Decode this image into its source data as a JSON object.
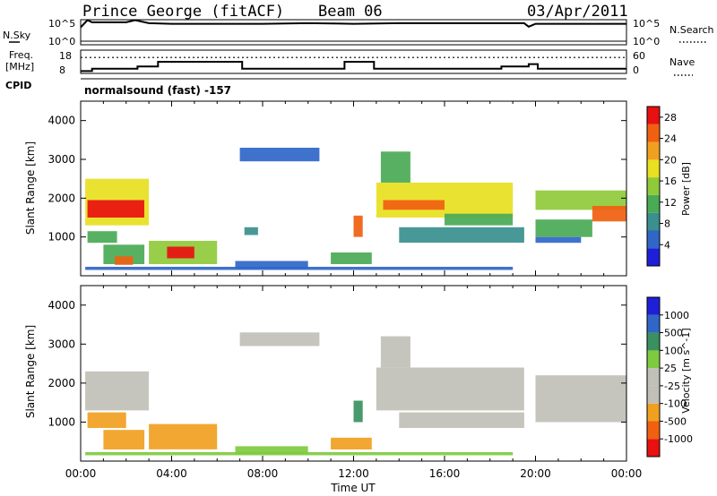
{
  "header": {
    "station": "Prince George (fitACF)",
    "beam": "Beam 06",
    "date": "03/Apr/2011"
  },
  "aux": {
    "nsky_label": "N.Sky",
    "nsearch_label": "N.Search",
    "freq_label_1": "Freq.",
    "freq_label_2": "[MHz]",
    "nave_label": "Nave",
    "cpid_label": "CPID",
    "cpid_text": "normalsound (fast) -157",
    "noise_ticks": [
      "10^5",
      "10^0"
    ],
    "freq_ticks": [
      "18",
      "8"
    ],
    "nave_ticks": [
      "60",
      "0"
    ]
  },
  "colors": {
    "power": [
      "#1f1fd8",
      "#2f66c8",
      "#3a8f8f",
      "#4aaa55",
      "#8fca3a",
      "#e8e020",
      "#f0a020",
      "#f06010",
      "#e81010"
    ],
    "velocity": [
      "#e81010",
      "#f06010",
      "#f0a020",
      "#c0c0b8",
      "#c0c0b8",
      "#7ecb40",
      "#3a9060",
      "#2f66c8",
      "#1f1fd8"
    ]
  },
  "chart_data": [
    {
      "type": "line",
      "panel": "noise",
      "ylabel": "N.Sky",
      "ylabel_right": "N.Search",
      "y_scale": "log",
      "ylim": [
        1,
        100000
      ],
      "x_hours": [
        0,
        0.3,
        0.5,
        1,
        2,
        2.4,
        3,
        4,
        6,
        8,
        10,
        12,
        14,
        16,
        18,
        19.5,
        19.7,
        20,
        22,
        24
      ],
      "series": [
        {
          "name": "N.Sky",
          "values": [
            3000,
            80000,
            30000,
            30000,
            30000,
            80000,
            20000,
            15000,
            15000,
            15000,
            20000,
            15000,
            20000,
            20000,
            20000,
            20000,
            4000,
            15000,
            15000,
            15000
          ]
        }
      ]
    },
    {
      "type": "line",
      "panel": "frequency",
      "ylabel": "Freq. [MHz]",
      "ylabel_right": "Nave",
      "ylim": [
        8,
        18
      ],
      "y2lim": [
        0,
        60
      ],
      "step_hours": [
        0,
        0.5,
        2.5,
        3.4,
        7.1,
        11.6,
        12.9,
        18.5,
        19.7,
        20.1,
        24
      ],
      "series": [
        {
          "name": "Freq. [MHz]",
          "values": [
            9,
            10,
            11,
            13,
            10,
            13,
            10,
            11,
            12,
            10,
            10
          ]
        },
        {
          "name": "Nave",
          "values": [
            41,
            41,
            41,
            41,
            41,
            41,
            41,
            41,
            41,
            41,
            41
          ]
        }
      ]
    },
    {
      "type": "heatmap",
      "panel": "power",
      "ylabel": "Slant Range [km]",
      "ylim": [
        0,
        4500
      ],
      "xlim_hours": [
        0,
        24
      ],
      "colorbar_label": "Power [dB]",
      "colorbar_ticks": [
        4,
        8,
        12,
        16,
        20,
        24,
        28
      ],
      "colorbar_range": [
        0,
        30
      ],
      "y_ticks": [
        1000,
        2000,
        3000,
        4000
      ],
      "regions": [
        {
          "t0": 0.2,
          "t1": 3.0,
          "r0": 1300,
          "r1": 2500,
          "value": 18
        },
        {
          "t0": 0.3,
          "t1": 2.8,
          "r0": 1500,
          "r1": 1950,
          "value": 27
        },
        {
          "t0": 0.3,
          "t1": 1.6,
          "r0": 850,
          "r1": 1150,
          "value": 10
        },
        {
          "t0": 1.0,
          "t1": 2.8,
          "r0": 300,
          "r1": 800,
          "value": 12
        },
        {
          "t0": 1.5,
          "t1": 2.3,
          "r0": 280,
          "r1": 500,
          "value": 24
        },
        {
          "t0": 3.0,
          "t1": 6.0,
          "r0": 300,
          "r1": 900,
          "value": 14
        },
        {
          "t0": 3.8,
          "t1": 5.0,
          "r0": 450,
          "r1": 750,
          "value": 28
        },
        {
          "t0": 6.8,
          "t1": 10.0,
          "r0": 180,
          "r1": 380,
          "value": 6
        },
        {
          "t0": 7.2,
          "t1": 7.8,
          "r0": 1050,
          "r1": 1250,
          "value": 8
        },
        {
          "t0": 7.0,
          "t1": 10.5,
          "r0": 2950,
          "r1": 3300,
          "value": 6
        },
        {
          "t0": 11.0,
          "t1": 12.8,
          "r0": 300,
          "r1": 600,
          "value": 10
        },
        {
          "t0": 12.0,
          "t1": 12.4,
          "r0": 1000,
          "r1": 1550,
          "value": 24
        },
        {
          "t0": 13.0,
          "t1": 19.0,
          "r0": 1500,
          "r1": 2400,
          "value": 18
        },
        {
          "t0": 13.3,
          "t1": 16.0,
          "r0": 1700,
          "r1": 1950,
          "value": 26
        },
        {
          "t0": 13.2,
          "t1": 14.5,
          "r0": 2400,
          "r1": 3200,
          "value": 10
        },
        {
          "t0": 14.0,
          "t1": 19.5,
          "r0": 850,
          "r1": 1250,
          "value": 8
        },
        {
          "t0": 16.0,
          "t1": 19.0,
          "r0": 1300,
          "r1": 1600,
          "value": 10
        },
        {
          "t0": 20.0,
          "t1": 24.0,
          "r0": 1700,
          "r1": 2200,
          "value": 16
        },
        {
          "t0": 22.5,
          "t1": 24.0,
          "r0": 1400,
          "r1": 1800,
          "value": 26
        },
        {
          "t0": 20.0,
          "t1": 22.5,
          "r0": 1000,
          "r1": 1450,
          "value": 10
        },
        {
          "t0": 20.0,
          "t1": 22.0,
          "r0": 850,
          "r1": 1000,
          "value": 6
        },
        {
          "t0": 0.2,
          "t1": 19.0,
          "r0": 150,
          "r1": 230,
          "value": 5
        }
      ]
    },
    {
      "type": "heatmap",
      "panel": "velocity",
      "ylabel": "Slant Range [km]",
      "xlabel": "Time UT",
      "ylim": [
        0,
        4500
      ],
      "xlim_hours": [
        0,
        24
      ],
      "colorbar_label": "Velocity [m s^-1]",
      "colorbar_ticks": [
        "1000",
        "500",
        "100",
        "25",
        "-25",
        "-100",
        "-500",
        "-1000"
      ],
      "y_ticks": [
        1000,
        2000,
        3000,
        4000
      ],
      "x_ticks": [
        "00:00",
        "04:00",
        "08:00",
        "12:00",
        "16:00",
        "20:00",
        "00:00"
      ],
      "regions": [
        {
          "t0": 0.2,
          "t1": 3.0,
          "r0": 1300,
          "r1": 2300,
          "value": 0
        },
        {
          "t0": 0.3,
          "t1": 2.0,
          "r0": 850,
          "r1": 1250,
          "value": -300
        },
        {
          "t0": 1.0,
          "t1": 2.8,
          "r0": 300,
          "r1": 800,
          "value": -300
        },
        {
          "t0": 3.0,
          "t1": 6.0,
          "r0": 300,
          "r1": 950,
          "value": -400
        },
        {
          "t0": 7.0,
          "t1": 10.5,
          "r0": 2950,
          "r1": 3300,
          "value": 0
        },
        {
          "t0": 6.8,
          "t1": 10.0,
          "r0": 180,
          "r1": 380,
          "value": 60
        },
        {
          "t0": 11.0,
          "t1": 12.8,
          "r0": 300,
          "r1": 600,
          "value": -150
        },
        {
          "t0": 12.0,
          "t1": 12.4,
          "r0": 1000,
          "r1": 1550,
          "value": 200
        },
        {
          "t0": 13.0,
          "t1": 19.5,
          "r0": 1300,
          "r1": 2400,
          "value": 0
        },
        {
          "t0": 13.2,
          "t1": 14.5,
          "r0": 2400,
          "r1": 3200,
          "value": 0
        },
        {
          "t0": 14.0,
          "t1": 19.5,
          "r0": 850,
          "r1": 1250,
          "value": 0
        },
        {
          "t0": 20.0,
          "t1": 24.0,
          "r0": 1000,
          "r1": 2200,
          "value": 0
        },
        {
          "t0": 0.2,
          "t1": 19.0,
          "r0": 150,
          "r1": 230,
          "value": 50
        }
      ]
    }
  ]
}
